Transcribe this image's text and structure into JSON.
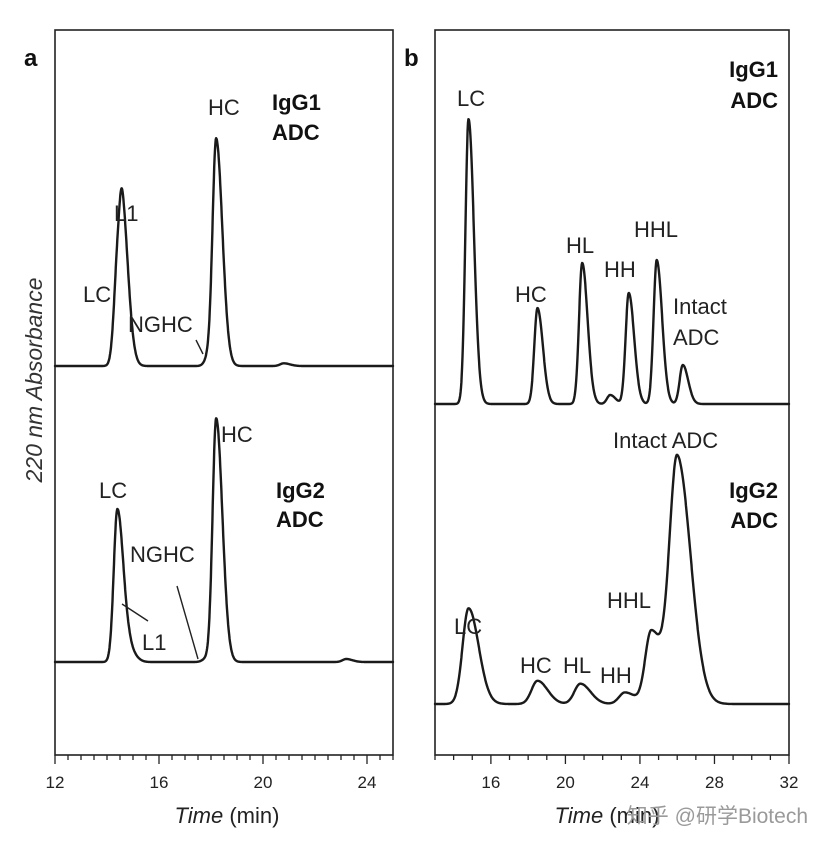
{
  "y_axis_label": "220 nm Absorbance",
  "watermark": "知乎 @研学Biotech",
  "chart_data": [
    {
      "panel": "a",
      "type": "line",
      "xlabel_italic": "Time",
      "xlabel_unit": " (min)",
      "xlim": [
        12,
        25
      ],
      "xticks": [
        12,
        16,
        20,
        24
      ],
      "traces": [
        {
          "sample": [
            "IgG1",
            "ADC"
          ],
          "peaks": [
            {
              "label": "LC",
              "time": 14.4,
              "height": 0.32
            },
            {
              "label": "L1",
              "time": 14.6,
              "height": 0.42
            },
            {
              "label": "NGHC",
              "time": 17.9,
              "height": 0.03
            },
            {
              "label": "HC",
              "time": 18.2,
              "height": 0.83
            },
            {
              "label": "",
              "time": 20.8,
              "height": 0.01
            }
          ]
        },
        {
          "sample": [
            "IgG2",
            "ADC"
          ],
          "peaks": [
            {
              "label": "LC",
              "time": 14.4,
              "height": 0.51
            },
            {
              "label": "L1",
              "time": 14.9,
              "height": 0.03
            },
            {
              "label": "NGHC",
              "time": 17.8,
              "height": 0.01
            },
            {
              "label": "HC",
              "time": 18.2,
              "height": 0.81
            },
            {
              "label": "",
              "time": 23.2,
              "height": 0.01
            }
          ]
        }
      ]
    },
    {
      "panel": "b",
      "type": "line",
      "xlabel_italic": "Time",
      "xlabel_unit": " (min)",
      "xlim": [
        13,
        32
      ],
      "xticks": [
        16,
        20,
        24,
        28,
        32
      ],
      "traces": [
        {
          "sample": [
            "IgG1",
            "ADC"
          ],
          "peaks": [
            {
              "label": "LC",
              "time": 14.8,
              "height": 0.95
            },
            {
              "label": "HC",
              "time": 18.5,
              "height": 0.32
            },
            {
              "label": "HL",
              "time": 20.9,
              "height": 0.47
            },
            {
              "label": "",
              "time": 22.4,
              "height": 0.03
            },
            {
              "label": "HH",
              "time": 23.4,
              "height": 0.37
            },
            {
              "label": "HHL",
              "time": 24.9,
              "height": 0.48
            },
            {
              "label": "Intact ADC",
              "time": 26.3,
              "height": 0.13
            }
          ]
        },
        {
          "sample": [
            "IgG2",
            "ADC"
          ],
          "peaks": [
            {
              "label": "LC",
              "time": 14.8,
              "height": 0.33
            },
            {
              "label": "HC",
              "time": 18.5,
              "height": 0.08
            },
            {
              "label": "HL",
              "time": 20.8,
              "height": 0.07
            },
            {
              "label": "HH",
              "time": 23.2,
              "height": 0.04
            },
            {
              "label": "HHL",
              "time": 24.6,
              "height": 0.25
            },
            {
              "label": "Intact ADC",
              "time": 26.0,
              "height": 0.85
            }
          ]
        }
      ]
    }
  ]
}
